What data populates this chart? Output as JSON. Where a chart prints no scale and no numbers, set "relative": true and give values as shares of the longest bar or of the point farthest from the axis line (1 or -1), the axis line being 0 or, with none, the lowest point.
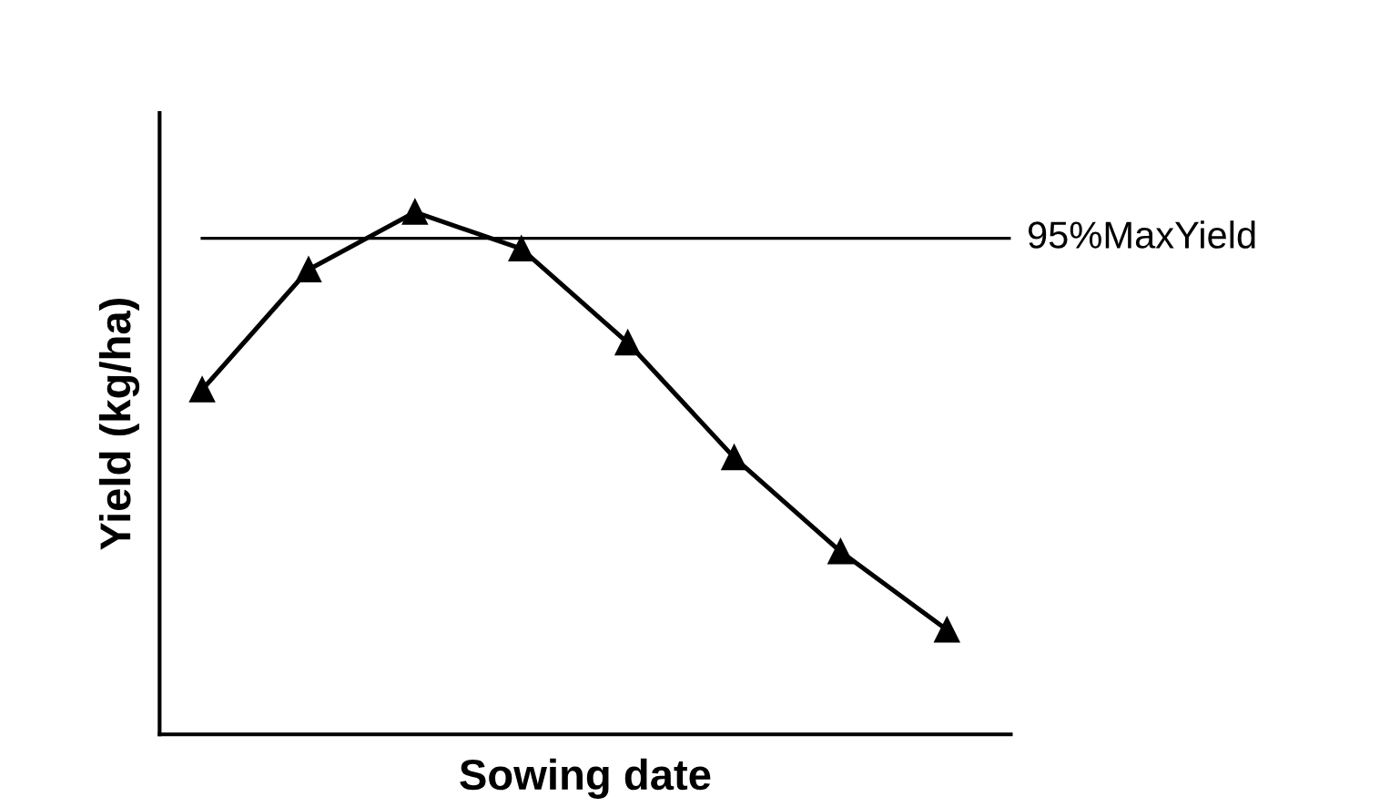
{
  "chart_data": {
    "type": "line",
    "xlabel": "Sowing date",
    "ylabel": "Yield (kg/ha)",
    "relative": true,
    "categories": [
      null,
      null,
      null,
      null,
      null,
      null,
      null,
      null
    ],
    "series": [
      {
        "color": "#000000",
        "values": [
          0.66,
          0.89,
          1.0,
          0.93,
          0.75,
          0.53,
          0.35,
          0.2
        ]
      }
    ],
    "marker": "triangle",
    "line_style": "solid",
    "grid": false,
    "legend": false,
    "ref_lines": [
      {
        "axis": "y",
        "value": 0.95,
        "label": "95%MaxYield",
        "color": "#000000",
        "line_style": "solid"
      }
    ]
  }
}
